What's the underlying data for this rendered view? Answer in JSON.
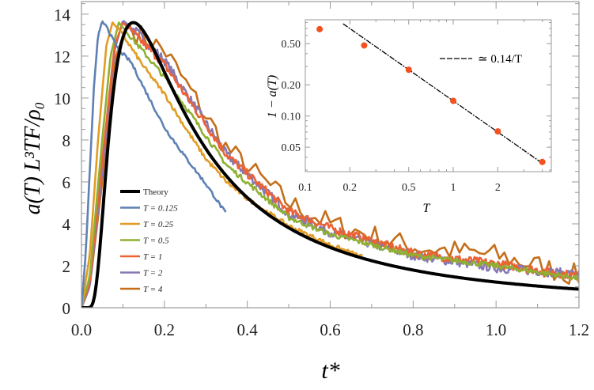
{
  "chart_data": {
    "type": "line",
    "main": {
      "xlabel": "t*",
      "ylabel": "a(T) L³TF/ρ₀",
      "xlim": [
        0,
        1.2
      ],
      "ylim": [
        0,
        14.6
      ],
      "xticks": [
        "0.0",
        "0.2",
        "0.4",
        "0.6",
        "0.8",
        "1.0",
        "1.2"
      ],
      "yticks": [
        "0",
        "2",
        "4",
        "6",
        "8",
        "10",
        "12",
        "14"
      ],
      "legend_position": "bottom-left",
      "theory": {
        "name": "Theory",
        "color": "#000000",
        "model": "C t^-2 exp(-b/t)",
        "C": 1.57,
        "b": 0.25
      },
      "series": [
        {
          "name": "T = 0.125",
          "color": "#5E81B5",
          "noise": 0.08,
          "points": [
            [
              0,
              0
            ],
            [
              0.01,
              2.5
            ],
            [
              0.02,
              6.5
            ],
            [
              0.03,
              10.5
            ],
            [
              0.04,
              13.0
            ],
            [
              0.05,
              13.6
            ],
            [
              0.06,
              13.5
            ],
            [
              0.07,
              13.0
            ],
            [
              0.09,
              12.3
            ],
            [
              0.12,
              11.7
            ],
            [
              0.15,
              10.5
            ],
            [
              0.2,
              8.6
            ],
            [
              0.25,
              7.2
            ],
            [
              0.3,
              5.9
            ],
            [
              0.35,
              4.45
            ]
          ]
        },
        {
          "name": "T = 0.25",
          "color": "#E19C24",
          "noise": 0.1,
          "points": [
            [
              0,
              0
            ],
            [
              0.02,
              2.5
            ],
            [
              0.04,
              8
            ],
            [
              0.06,
              12.5
            ],
            [
              0.075,
              13.6
            ],
            [
              0.1,
              13.0
            ],
            [
              0.15,
              11.5
            ],
            [
              0.2,
              10.2
            ],
            [
              0.25,
              8.6
            ],
            [
              0.3,
              7.1
            ],
            [
              0.35,
              6.0
            ],
            [
              0.4,
              5.2
            ],
            [
              0.5,
              3.9
            ],
            [
              0.6,
              3.0
            ],
            [
              0.68,
              2.4
            ]
          ]
        },
        {
          "name": "T = 0.5",
          "color": "#8FB032",
          "noise": 0.12,
          "points": [
            [
              0,
              0
            ],
            [
              0.02,
              1.5
            ],
            [
              0.05,
              8
            ],
            [
              0.07,
              12
            ],
            [
              0.09,
              13.6
            ],
            [
              0.12,
              12.9
            ],
            [
              0.2,
              11.0
            ],
            [
              0.35,
              6.8
            ],
            [
              0.5,
              4.3
            ],
            [
              0.6,
              3.5
            ],
            [
              0.8,
              2.5
            ],
            [
              1.0,
              2.0
            ],
            [
              1.2,
              1.4
            ]
          ]
        },
        {
          "name": "T = 1",
          "color": "#EB6235",
          "noise": 0.2,
          "points": [
            [
              0,
              0
            ],
            [
              0.02,
              1.2
            ],
            [
              0.05,
              7
            ],
            [
              0.08,
              12.5
            ],
            [
              0.1,
              13.6
            ],
            [
              0.13,
              13.0
            ],
            [
              0.2,
              11.6
            ],
            [
              0.35,
              7.3
            ],
            [
              0.5,
              4.6
            ],
            [
              0.6,
              3.8
            ],
            [
              0.8,
              2.6
            ],
            [
              1.0,
              2.1
            ],
            [
              1.2,
              1.5
            ]
          ]
        },
        {
          "name": "T = 2",
          "color": "#8778B3",
          "noise": 0.22,
          "points": [
            [
              0,
              0
            ],
            [
              0.02,
              1
            ],
            [
              0.05,
              6.5
            ],
            [
              0.08,
              12.3
            ],
            [
              0.1,
              13.7
            ],
            [
              0.13,
              13.2
            ],
            [
              0.2,
              11.8
            ],
            [
              0.35,
              7.3
            ],
            [
              0.5,
              4.5
            ],
            [
              0.6,
              3.6
            ],
            [
              0.8,
              2.5
            ],
            [
              1.0,
              1.9
            ],
            [
              1.2,
              1.6
            ]
          ]
        },
        {
          "name": "T = 4",
          "color": "#C56E1A",
          "noise": 0.35,
          "points": [
            [
              0,
              0
            ],
            [
              0.02,
              1
            ],
            [
              0.05,
              6
            ],
            [
              0.08,
              11.8
            ],
            [
              0.11,
              13.5
            ],
            [
              0.14,
              13.0
            ],
            [
              0.2,
              12.3
            ],
            [
              0.35,
              7.6
            ],
            [
              0.5,
              5.0
            ],
            [
              0.6,
              4.0
            ],
            [
              0.8,
              2.9
            ],
            [
              1.0,
              2.5
            ],
            [
              1.2,
              1.5
            ]
          ]
        }
      ]
    },
    "inset": {
      "type": "scatter",
      "xscale": "log",
      "yscale": "log",
      "xlabel": "T",
      "ylabel": "1 − a(T)",
      "xlim": [
        0.1,
        4.6
      ],
      "ylim": [
        0.029,
        0.85
      ],
      "xticks": [
        [
          "0.1",
          0.1
        ],
        [
          "0.2",
          0.2
        ],
        [
          "0.5",
          0.5
        ],
        [
          "1",
          1
        ],
        [
          "2",
          2
        ]
      ],
      "yticks": [
        [
          "0.05",
          0.05
        ],
        [
          "0.10",
          0.1
        ],
        [
          "0.20",
          0.2
        ],
        [
          "0.50",
          0.5
        ]
      ],
      "point_color": "#F4511E",
      "points": [
        [
          0.125,
          0.69
        ],
        [
          0.25,
          0.48
        ],
        [
          0.5,
          0.28
        ],
        [
          1,
          0.14
        ],
        [
          2,
          0.071
        ],
        [
          4,
          0.036
        ]
      ],
      "fit": {
        "label": "≃ 0.14/T",
        "coefficient": 0.14,
        "x_range": [
          0.18,
          4
        ]
      },
      "legend_position": "top-right"
    }
  }
}
